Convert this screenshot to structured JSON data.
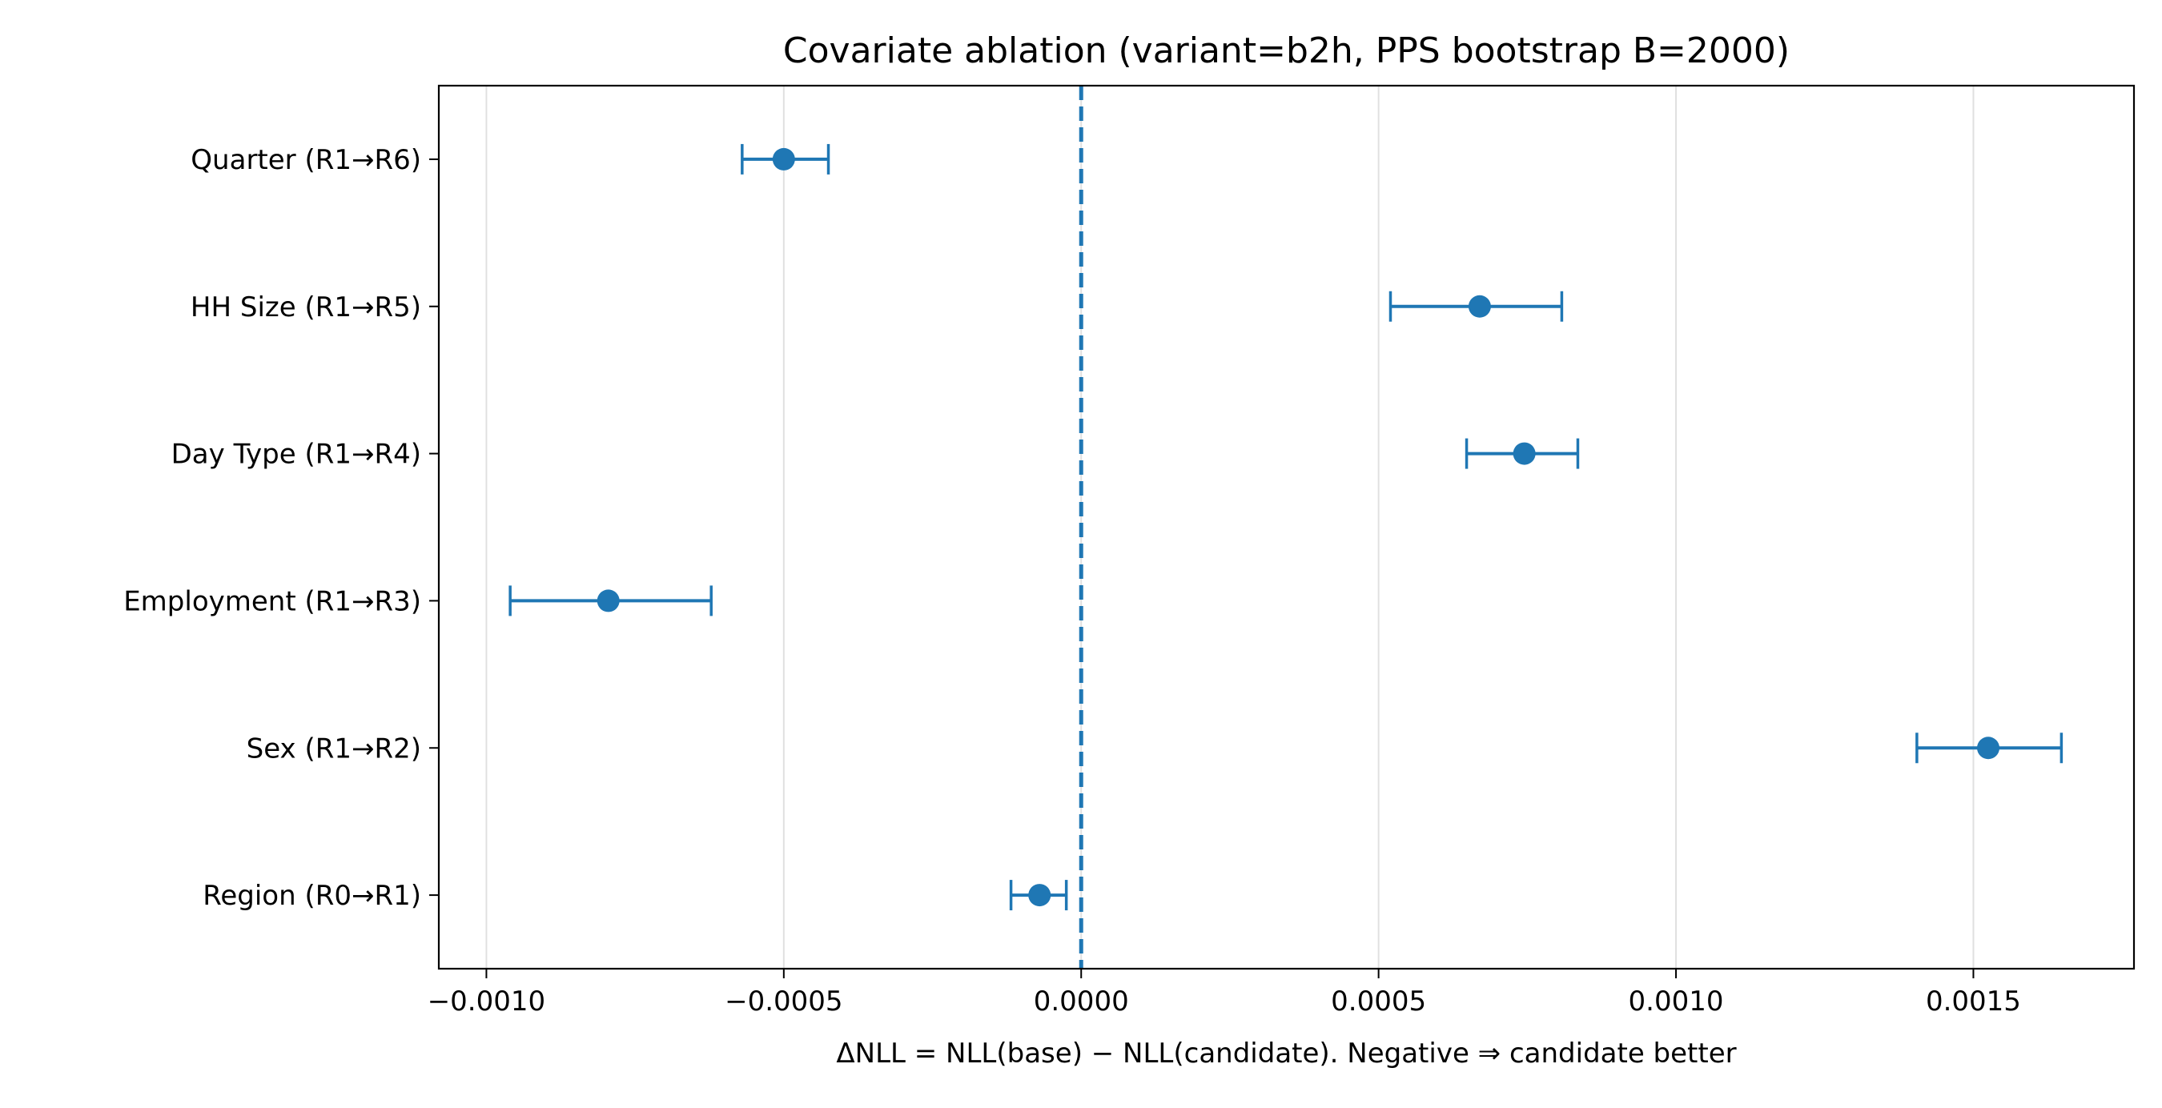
{
  "chart_data": {
    "type": "scatter",
    "subtype": "forest-plot-with-error-bars",
    "title": "Covariate ablation (variant=b2h, PPS bootstrap B=2000)",
    "xlabel": "ΔNLL = NLL(base) − NLL(candidate). Negative ⇒ candidate better",
    "ylabel": "",
    "xlim": [
      -0.00108,
      0.00177
    ],
    "xticks": [
      -0.001,
      -0.0005,
      0.0,
      0.0005,
      0.001,
      0.0015
    ],
    "xtick_labels": [
      "−0.0010",
      "−0.0005",
      "0.0000",
      "0.0005",
      "0.0010",
      "0.0015"
    ],
    "grid": "vertical",
    "reference_line": {
      "x": 0.0,
      "style": "dashed"
    },
    "categories": [
      "Quarter  (R1→R6)",
      "HH Size  (R1→R5)",
      "Day Type  (R1→R4)",
      "Employment  (R1→R3)",
      "Sex  (R1→R2)",
      "Region  (R0→R1)"
    ],
    "estimates": [
      -0.0005,
      0.00067,
      0.000745,
      -0.000795,
      0.001525,
      -7e-05
    ],
    "ci_lower": [
      -0.00057,
      0.00052,
      0.000648,
      -0.00096,
      0.001405,
      -0.000118
    ],
    "ci_upper": [
      -0.000425,
      0.000808,
      0.000835,
      -0.000622,
      0.001648,
      -2.5e-05
    ]
  },
  "colors": {
    "series": "#1f77b4",
    "grid": "#e0e0e0",
    "axes": "#000000"
  }
}
